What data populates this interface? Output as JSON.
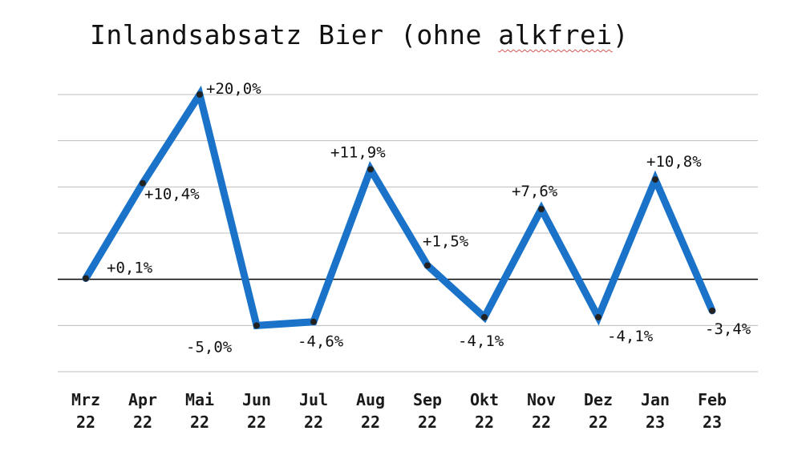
{
  "chart_data": {
    "type": "line",
    "title_prefix": "Inlandsabsatz Bier (ohne ",
    "title_marked_word": "alkfrei",
    "title_suffix": ")",
    "categories": [
      [
        "Mrz",
        "22"
      ],
      [
        "Apr",
        "22"
      ],
      [
        "Mai",
        "22"
      ],
      [
        "Jun",
        "22"
      ],
      [
        "Jul",
        "22"
      ],
      [
        "Aug",
        "22"
      ],
      [
        "Sep",
        "22"
      ],
      [
        "Okt",
        "22"
      ],
      [
        "Nov",
        "22"
      ],
      [
        "Dez",
        "22"
      ],
      [
        "Jan",
        "23"
      ],
      [
        "Feb",
        "23"
      ]
    ],
    "values": [
      0.1,
      10.4,
      20.0,
      -5.0,
      -4.6,
      11.9,
      1.5,
      -4.1,
      7.6,
      -4.1,
      10.8,
      -3.4
    ],
    "data_labels": [
      "+0,1%",
      "+10,4%",
      "+20,0%",
      "-5,0%",
      "-4,6%",
      "+11,9%",
      "+1,5%",
      "-4,1%",
      "+7,6%",
      "-4,1%",
      "+10,8%",
      "-3,4%"
    ],
    "xlabel": "",
    "ylabel": "",
    "ylim": [
      -10,
      20
    ],
    "grid": true,
    "line_color": "#1a73c8",
    "marker_color": "#222222",
    "gridline_color": "#bdbdbd",
    "zero_line_color": "#000000"
  }
}
